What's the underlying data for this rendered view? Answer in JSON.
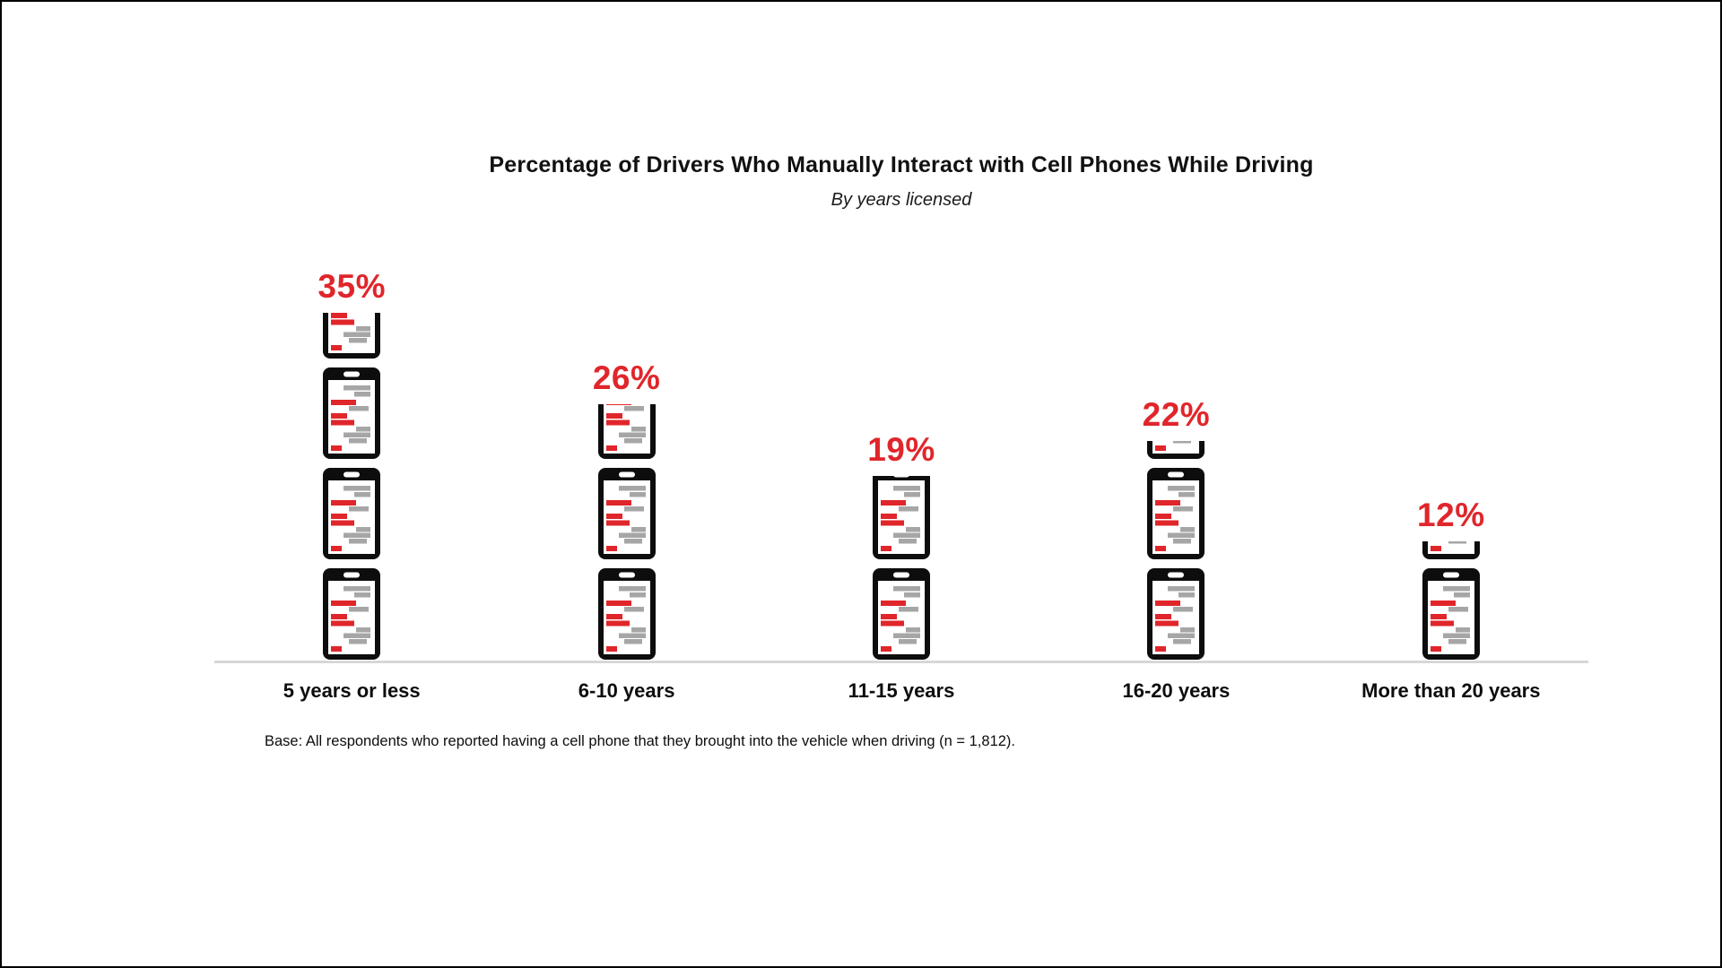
{
  "chart_data": {
    "type": "bar",
    "variant": "pictogram-stacked-phone-icons",
    "title": "Percentage of Drivers Who Manually Interact with Cell Phones While Driving",
    "subtitle": "By years licensed",
    "categories": [
      "5 years or less",
      "6-10 years",
      "11-15 years",
      "16-20 years",
      "More than 20 years"
    ],
    "values": [
      35,
      26,
      19,
      22,
      12
    ],
    "value_labels": [
      "35%",
      "26%",
      "19%",
      "22%",
      "12%"
    ],
    "unit_per_icon": 10,
    "icon": "smartphone-messages-icon",
    "note": "Base: All respondents who reported having a cell phone that they brought into the vehicle when driving (n = 1,812).",
    "ylim": [
      0,
      40
    ],
    "layout": {
      "grid": false,
      "legend": false,
      "value_label_position": "above-bar",
      "baseline_axis": true
    },
    "colors": {
      "accent_red": "#e0262b",
      "bar_gray": "#a6a6a6",
      "phone_black": "#0d0d0d",
      "screen_white": "#ffffff",
      "axis_line": "#d7d7d7",
      "text": "#0d0d0d"
    }
  }
}
